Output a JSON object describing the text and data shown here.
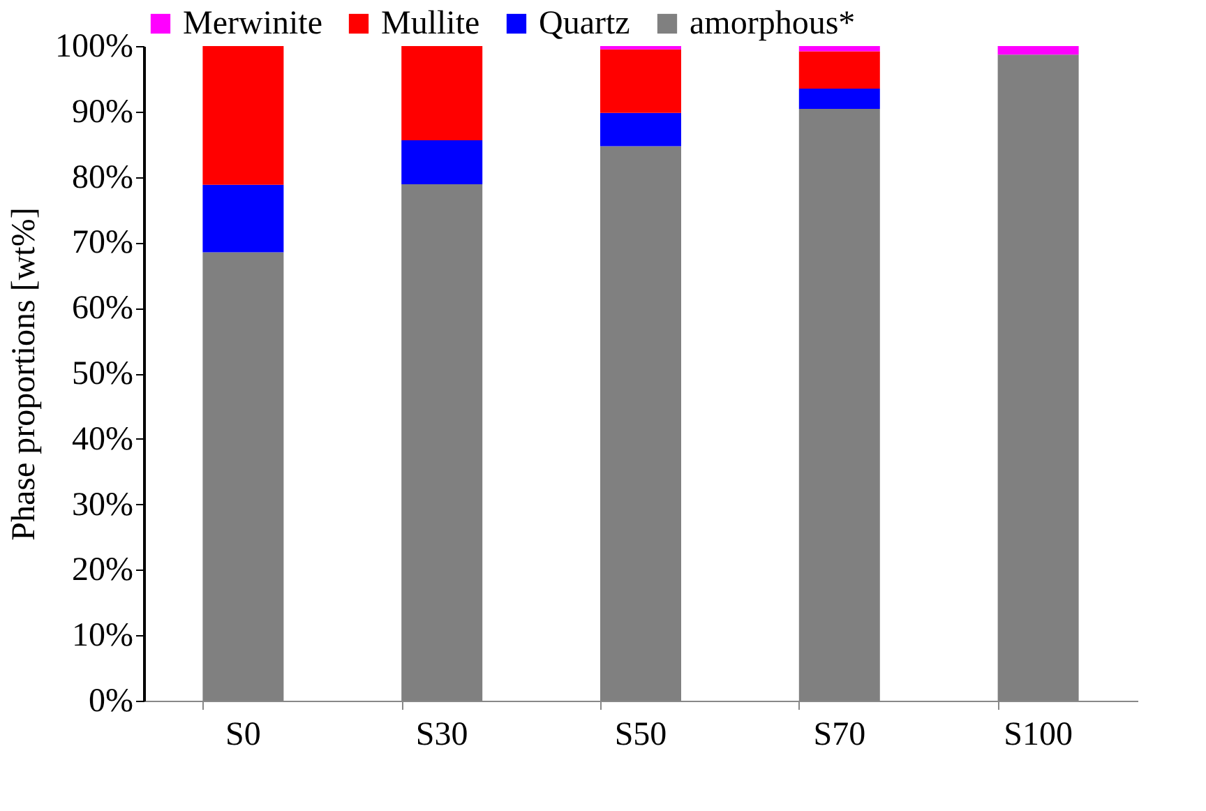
{
  "chart_data": {
    "type": "bar",
    "stacked": true,
    "ylabel": "Phase proportions [wt%]",
    "categories": [
      "S0",
      "S30",
      "S50",
      "S70",
      "S100"
    ],
    "series": [
      {
        "name": "amorphous*",
        "color": "#808080",
        "values": [
          68.5,
          78.9,
          84.7,
          90.4,
          98.7
        ]
      },
      {
        "name": "Quartz",
        "color": "#0000ff",
        "values": [
          10.3,
          6.7,
          5.1,
          3.1,
          0
        ]
      },
      {
        "name": "Mullite",
        "color": "#ff0000",
        "values": [
          21.2,
          14.4,
          9.7,
          5.7,
          0
        ]
      },
      {
        "name": "Merwinite",
        "color": "#ff00ff",
        "values": [
          0,
          0,
          0.5,
          0.8,
          1.3
        ]
      }
    ],
    "ylim": [
      0,
      100
    ],
    "yticks": [
      {
        "value": 0,
        "label": "0%"
      },
      {
        "value": 10,
        "label": "10%"
      },
      {
        "value": 20,
        "label": "20%"
      },
      {
        "value": 30,
        "label": "30%"
      },
      {
        "value": 40,
        "label": "40%"
      },
      {
        "value": 50,
        "label": "50%"
      },
      {
        "value": 60,
        "label": "60%"
      },
      {
        "value": 70,
        "label": "70%"
      },
      {
        "value": 80,
        "label": "80%"
      },
      {
        "value": 90,
        "label": "90%"
      },
      {
        "value": 100,
        "label": "100%"
      }
    ],
    "grid": false,
    "legend": "top"
  }
}
